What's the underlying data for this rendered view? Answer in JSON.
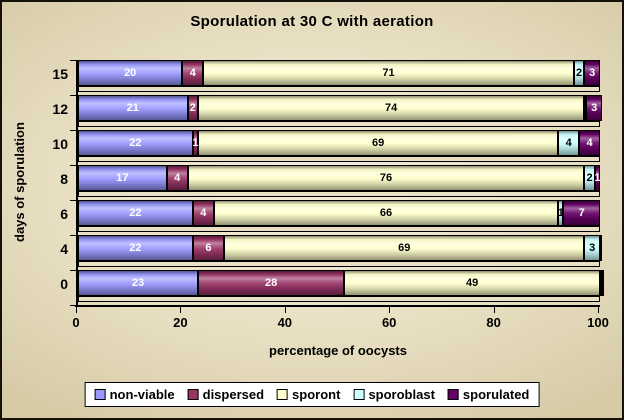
{
  "title": "Sporulation at 30 C with aeration",
  "x_axis": {
    "label": "percentage of oocysts",
    "ticks": [
      0,
      20,
      40,
      60,
      80,
      100
    ],
    "min": 0,
    "max": 100
  },
  "y_axis": {
    "label": "days of sporulation",
    "categories": [
      "15",
      "12",
      "10",
      "8",
      "6",
      "4",
      "0"
    ]
  },
  "colors": {
    "background": "#E8DFC2",
    "legend_background": "#FFFFFF",
    "axis": "#000000",
    "platform": "#E9E0C5"
  },
  "chart_data": {
    "type": "bar",
    "subtype": "stacked-horizontal-cylinder",
    "title": "Sporulation at 30 C with aeration",
    "xlabel": "percentage of oocysts",
    "ylabel": "days of sporulation",
    "xlim": [
      0,
      100
    ],
    "x_ticks": [
      0,
      20,
      40,
      60,
      80,
      100
    ],
    "grid": false,
    "legend_position": "bottom",
    "categories": [
      "15",
      "12",
      "10",
      "8",
      "6",
      "4",
      "0"
    ],
    "series": [
      {
        "name": "non-viable",
        "color": "#9999FF",
        "label_color": "#FFFFFF",
        "values": [
          20,
          21,
          22,
          17,
          22,
          22,
          23
        ]
      },
      {
        "name": "dispersed",
        "color": "#993366",
        "label_color": "#FFFFFF",
        "values": [
          4,
          2,
          1,
          4,
          4,
          6,
          28
        ]
      },
      {
        "name": "sporont",
        "color": "#FFFFCC",
        "label_color": "#000000",
        "values": [
          71,
          74,
          69,
          76,
          66,
          69,
          49
        ]
      },
      {
        "name": "sporoblast",
        "color": "#CCFFFF",
        "label_color": "#000000",
        "values": [
          2,
          0,
          4,
          2,
          1,
          3,
          0
        ]
      },
      {
        "name": "sporulated",
        "color": "#660066",
        "label_color": "#FFFFFF",
        "values": [
          3,
          3,
          4,
          1,
          7,
          0,
          0
        ]
      }
    ]
  }
}
